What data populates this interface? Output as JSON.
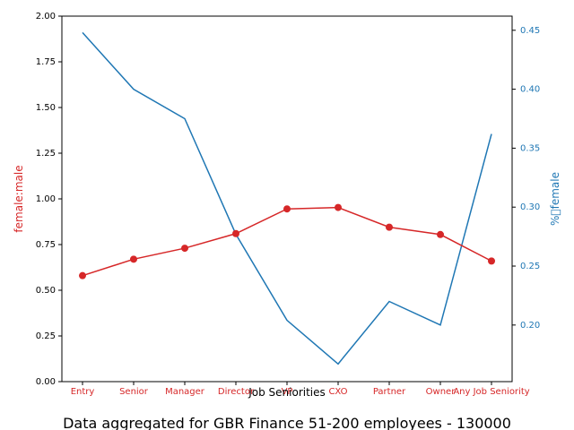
{
  "chart_data": {
    "type": "line",
    "categories": [
      "Entry",
      "Senior",
      "Manager",
      "Director",
      "VP",
      "CXO",
      "Partner",
      "Owner",
      "Any Job Seniority"
    ],
    "series": [
      {
        "name": "female:male",
        "axis": "left",
        "color": "#d62728",
        "marker": "circle",
        "values": [
          0.58,
          0.67,
          0.73,
          0.81,
          0.945,
          0.953,
          0.845,
          0.805,
          0.66
        ]
      },
      {
        "name": "%\u0000female",
        "axis": "right",
        "color": "#1f77b4",
        "marker": "none",
        "values": [
          0.448,
          0.4,
          0.375,
          0.277,
          0.204,
          0.167,
          0.22,
          0.2,
          0.362
        ]
      }
    ],
    "xlabel": "Job Seniorities",
    "ylabel_left": "female:male",
    "ylabel_right": "%\u0000female",
    "ylim_left": [
      0,
      2.0
    ],
    "ylim_right": [
      0.152,
      0.462
    ],
    "yticks_left": [
      "0.00",
      "0.25",
      "0.50",
      "0.75",
      "1.00",
      "1.25",
      "1.50",
      "1.75",
      "2.00"
    ],
    "yticks_right": [
      "0.20",
      "0.25",
      "0.30",
      "0.35",
      "0.40",
      "0.45"
    ],
    "grid": false,
    "caption": "Data aggregated for GBR Finance 51-200 employees - 130000"
  }
}
